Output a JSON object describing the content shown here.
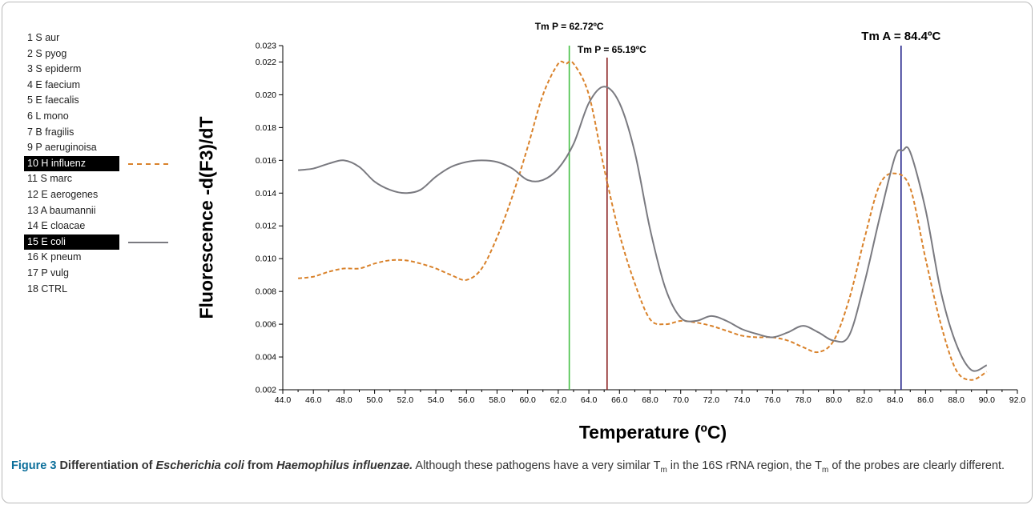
{
  "legend": [
    {
      "label": "1 S aur"
    },
    {
      "label": "2 S pyog"
    },
    {
      "label": "3 S epiderm"
    },
    {
      "label": "4 E faecium"
    },
    {
      "label": "5 E faecalis"
    },
    {
      "label": "6 L mono"
    },
    {
      "label": "7 B fragilis"
    },
    {
      "label": "9 P aeruginoisa"
    },
    {
      "label": "10 H influenz",
      "highlight": true,
      "color": "#d9822b",
      "dash": true
    },
    {
      "label": "11 S marc"
    },
    {
      "label": "12 E aerogenes"
    },
    {
      "label": "13 A baumannii"
    },
    {
      "label": "14 E cloacae"
    },
    {
      "label": "15 E coli",
      "highlight": true,
      "color": "#7a7a80",
      "dash": false
    },
    {
      "label": "16 K pneum"
    },
    {
      "label": "17 P vulg"
    },
    {
      "label": "18 CTRL"
    }
  ],
  "caption": {
    "figure": "Figure 3",
    "title_pre": "Differentiation of ",
    "species1": "Escherichia coli",
    "title_mid": " from ",
    "species2": "Haemophilus influenzae.",
    "text1": "Although these pathogens have a very similar T",
    "sub": "m",
    "text2": " in the 16S rRNA region, the T",
    "sub2": "m",
    "text3": " of the probes are clearly different."
  },
  "chart_data": {
    "type": "line",
    "xlabel": "Temperature (ºC)",
    "ylabel": "Fluorescence -d(F3)/dT",
    "xlim": [
      44,
      92
    ],
    "ylim": [
      0.002,
      0.023
    ],
    "xticks": [
      "44.0",
      "46.0",
      "48.0",
      "50.0",
      "52.0",
      "54.0",
      "56.0",
      "58.0",
      "60.0",
      "62.0",
      "64.0",
      "66.0",
      "68.0",
      "70.0",
      "72.0",
      "74.0",
      "76.0",
      "78.0",
      "80.0",
      "82.0",
      "84.0",
      "86.0",
      "88.0",
      "90.0",
      "92.0"
    ],
    "yticks": [
      "0.002",
      "0.004",
      "0.006",
      "0.008",
      "0.010",
      "0.012",
      "0.014",
      "0.016",
      "0.018",
      "0.020",
      "0.022",
      "0.023"
    ],
    "grid": false,
    "legend_position": "left",
    "series": [
      {
        "name": "10 H influenz",
        "color": "#d9822b",
        "dashed": true,
        "x": [
          45,
          46,
          47,
          48,
          49,
          50,
          51,
          52,
          53,
          54,
          55,
          56,
          57,
          58,
          59,
          60,
          61,
          62,
          62.5,
          63,
          64,
          65,
          66,
          67,
          68,
          69,
          70,
          71,
          72,
          73,
          74,
          75,
          76,
          77,
          78,
          79,
          80,
          81,
          82,
          83,
          84,
          85,
          86,
          87,
          88,
          89,
          90
        ],
        "y": [
          0.0088,
          0.0089,
          0.0092,
          0.0094,
          0.0094,
          0.0097,
          0.0099,
          0.0099,
          0.0097,
          0.0094,
          0.009,
          0.0087,
          0.0094,
          0.0113,
          0.0138,
          0.0168,
          0.02,
          0.0219,
          0.0219,
          0.0219,
          0.02,
          0.0155,
          0.0115,
          0.0085,
          0.0063,
          0.006,
          0.0062,
          0.0061,
          0.0059,
          0.0056,
          0.0053,
          0.0052,
          0.0052,
          0.005,
          0.0046,
          0.0043,
          0.005,
          0.0075,
          0.0112,
          0.0145,
          0.0152,
          0.0143,
          0.01,
          0.006,
          0.0032,
          0.0026,
          0.0031
        ]
      },
      {
        "name": "15 E coli",
        "color": "#7a7a80",
        "dashed": false,
        "x": [
          45,
          46,
          47,
          48,
          49,
          50,
          51,
          52,
          53,
          54,
          55,
          56,
          57,
          58,
          59,
          60,
          61,
          62,
          63,
          64,
          65,
          66,
          67,
          68,
          69,
          70,
          71,
          72,
          73,
          74,
          75,
          76,
          77,
          78,
          79,
          80,
          81,
          82,
          83,
          84,
          84.5,
          85,
          86,
          87,
          88,
          89,
          90
        ],
        "y": [
          0.0154,
          0.0155,
          0.0158,
          0.016,
          0.0156,
          0.0147,
          0.0142,
          0.014,
          0.0142,
          0.015,
          0.0156,
          0.0159,
          0.016,
          0.0159,
          0.0155,
          0.0148,
          0.0148,
          0.0155,
          0.017,
          0.0195,
          0.0205,
          0.0195,
          0.0165,
          0.0118,
          0.0082,
          0.0064,
          0.0062,
          0.0065,
          0.0062,
          0.0057,
          0.0054,
          0.0052,
          0.0055,
          0.0059,
          0.0055,
          0.005,
          0.0053,
          0.0085,
          0.0125,
          0.0162,
          0.0166,
          0.0165,
          0.013,
          0.008,
          0.0048,
          0.0032,
          0.0035
        ]
      }
    ],
    "vlines": [
      {
        "x": 62.72,
        "label": "Tm P = 62.72ºC",
        "color": "#44c044"
      },
      {
        "x": 65.19,
        "label": "Tm P = 65.19ºC",
        "color": "#8b2020"
      },
      {
        "x": 84.4,
        "label": "Tm A = 84.4ºC",
        "color": "#23238a"
      }
    ]
  }
}
